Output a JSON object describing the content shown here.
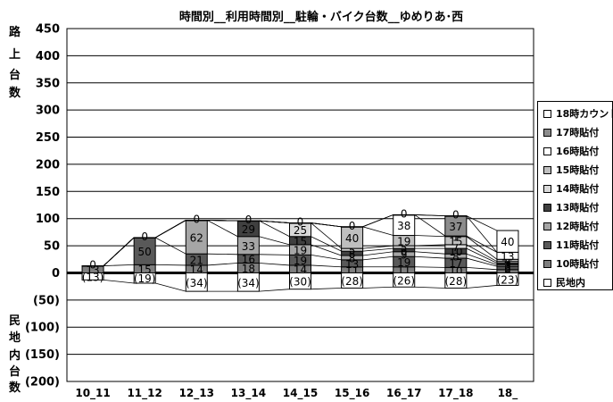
{
  "chart_data": {
    "type": "bar",
    "title": "時間別__利用時間別__駐輪・バイク台数__ゆめりあ･西",
    "ylabel_top": [
      "路",
      "上",
      "台",
      "数"
    ],
    "ylabel_bottom": [
      "民",
      "地",
      "内",
      "台",
      "数"
    ],
    "ylim": [
      -200,
      450
    ],
    "yticks": [
      -200,
      -150,
      -100,
      -50,
      0,
      50,
      100,
      150,
      200,
      250,
      300,
      350,
      400,
      450
    ],
    "ytick_labels": [
      "(200)",
      "(150)",
      "(100)",
      "(50)",
      "0",
      "50",
      "100",
      "150",
      "200",
      "250",
      "300",
      "350",
      "400",
      "450"
    ],
    "categories": [
      "10_11",
      "11_12",
      "12_13",
      "13_14",
      "14_15",
      "15_16",
      "16_17",
      "17_18",
      "18_"
    ],
    "legend_position": "right",
    "series": [
      {
        "name": "10時貼付",
        "color": "#7f7f7f",
        "values": [
          13,
          15,
          14,
          18,
          14,
          11,
          11,
          10,
          6
        ],
        "labels": [
          "13",
          "15",
          "14",
          "18",
          "14",
          "11",
          "11",
          "10",
          "6"
        ]
      },
      {
        "name": "11時貼付",
        "color": "#595959",
        "values": [
          0,
          50,
          21,
          16,
          19,
          13,
          19,
          17,
          6
        ],
        "labels": [
          "",
          "50",
          "21",
          "16",
          "19",
          "13",
          "19",
          "17",
          "6"
        ]
      },
      {
        "name": "12時貼付",
        "color": "#a6a6a6",
        "values": [
          0,
          0,
          62,
          33,
          19,
          8,
          9,
          8,
          3
        ],
        "labels": [
          "",
          "",
          "62",
          "33",
          "19",
          "8",
          "9",
          "8",
          "3"
        ]
      },
      {
        "name": "13時貼付",
        "color": "#404040",
        "values": [
          0,
          0,
          0,
          29,
          15,
          8,
          6,
          10,
          3
        ],
        "labels": [
          "",
          "",
          "",
          "29",
          "15",
          "8",
          "6",
          "10",
          "3"
        ]
      },
      {
        "name": "14時貼付",
        "color": "#d9d9d9",
        "values": [
          0,
          0,
          0,
          0,
          25,
          5,
          5,
          7,
          3
        ],
        "labels": [
          "",
          "",
          "",
          "",
          "25",
          "5",
          "5",
          "7",
          "3"
        ]
      },
      {
        "name": "15時貼付",
        "color": "#bfbfbf",
        "values": [
          0,
          0,
          0,
          0,
          0,
          40,
          19,
          15,
          4
        ],
        "labels": [
          "",
          "",
          "",
          "",
          "",
          "40",
          "19",
          "15",
          "4"
        ]
      },
      {
        "name": "16時貼付",
        "color": "#ffffff",
        "values": [
          0,
          0,
          0,
          0,
          0,
          0,
          38,
          1,
          13
        ],
        "labels": [
          "",
          "",
          "",
          "",
          "",
          "",
          "38",
          "1",
          "13"
        ]
      },
      {
        "name": "17時貼付",
        "color": "#8c8c8c",
        "values": [
          0,
          0,
          0,
          0,
          0,
          0,
          0,
          37,
          0
        ],
        "labels": [
          "",
          "",
          "",
          "",
          "",
          "",
          "",
          "37",
          ""
        ]
      },
      {
        "name": "18時カウント",
        "color": "#ffffff",
        "values": [
          0,
          0,
          0,
          0,
          0,
          0,
          0,
          0,
          40
        ],
        "labels": [
          "0",
          "0",
          "0",
          "0",
          "0",
          "0",
          "0",
          "0",
          "40"
        ]
      },
      {
        "name": "民地内",
        "color": "#ffffff",
        "values": [
          -13,
          -19,
          -34,
          -34,
          -30,
          -28,
          -26,
          -28,
          -23
        ],
        "labels": [
          "(13)",
          "(19)",
          "(34)",
          "(34)",
          "(30)",
          "(28)",
          "(26)",
          "(28)",
          "(23)"
        ]
      }
    ]
  }
}
